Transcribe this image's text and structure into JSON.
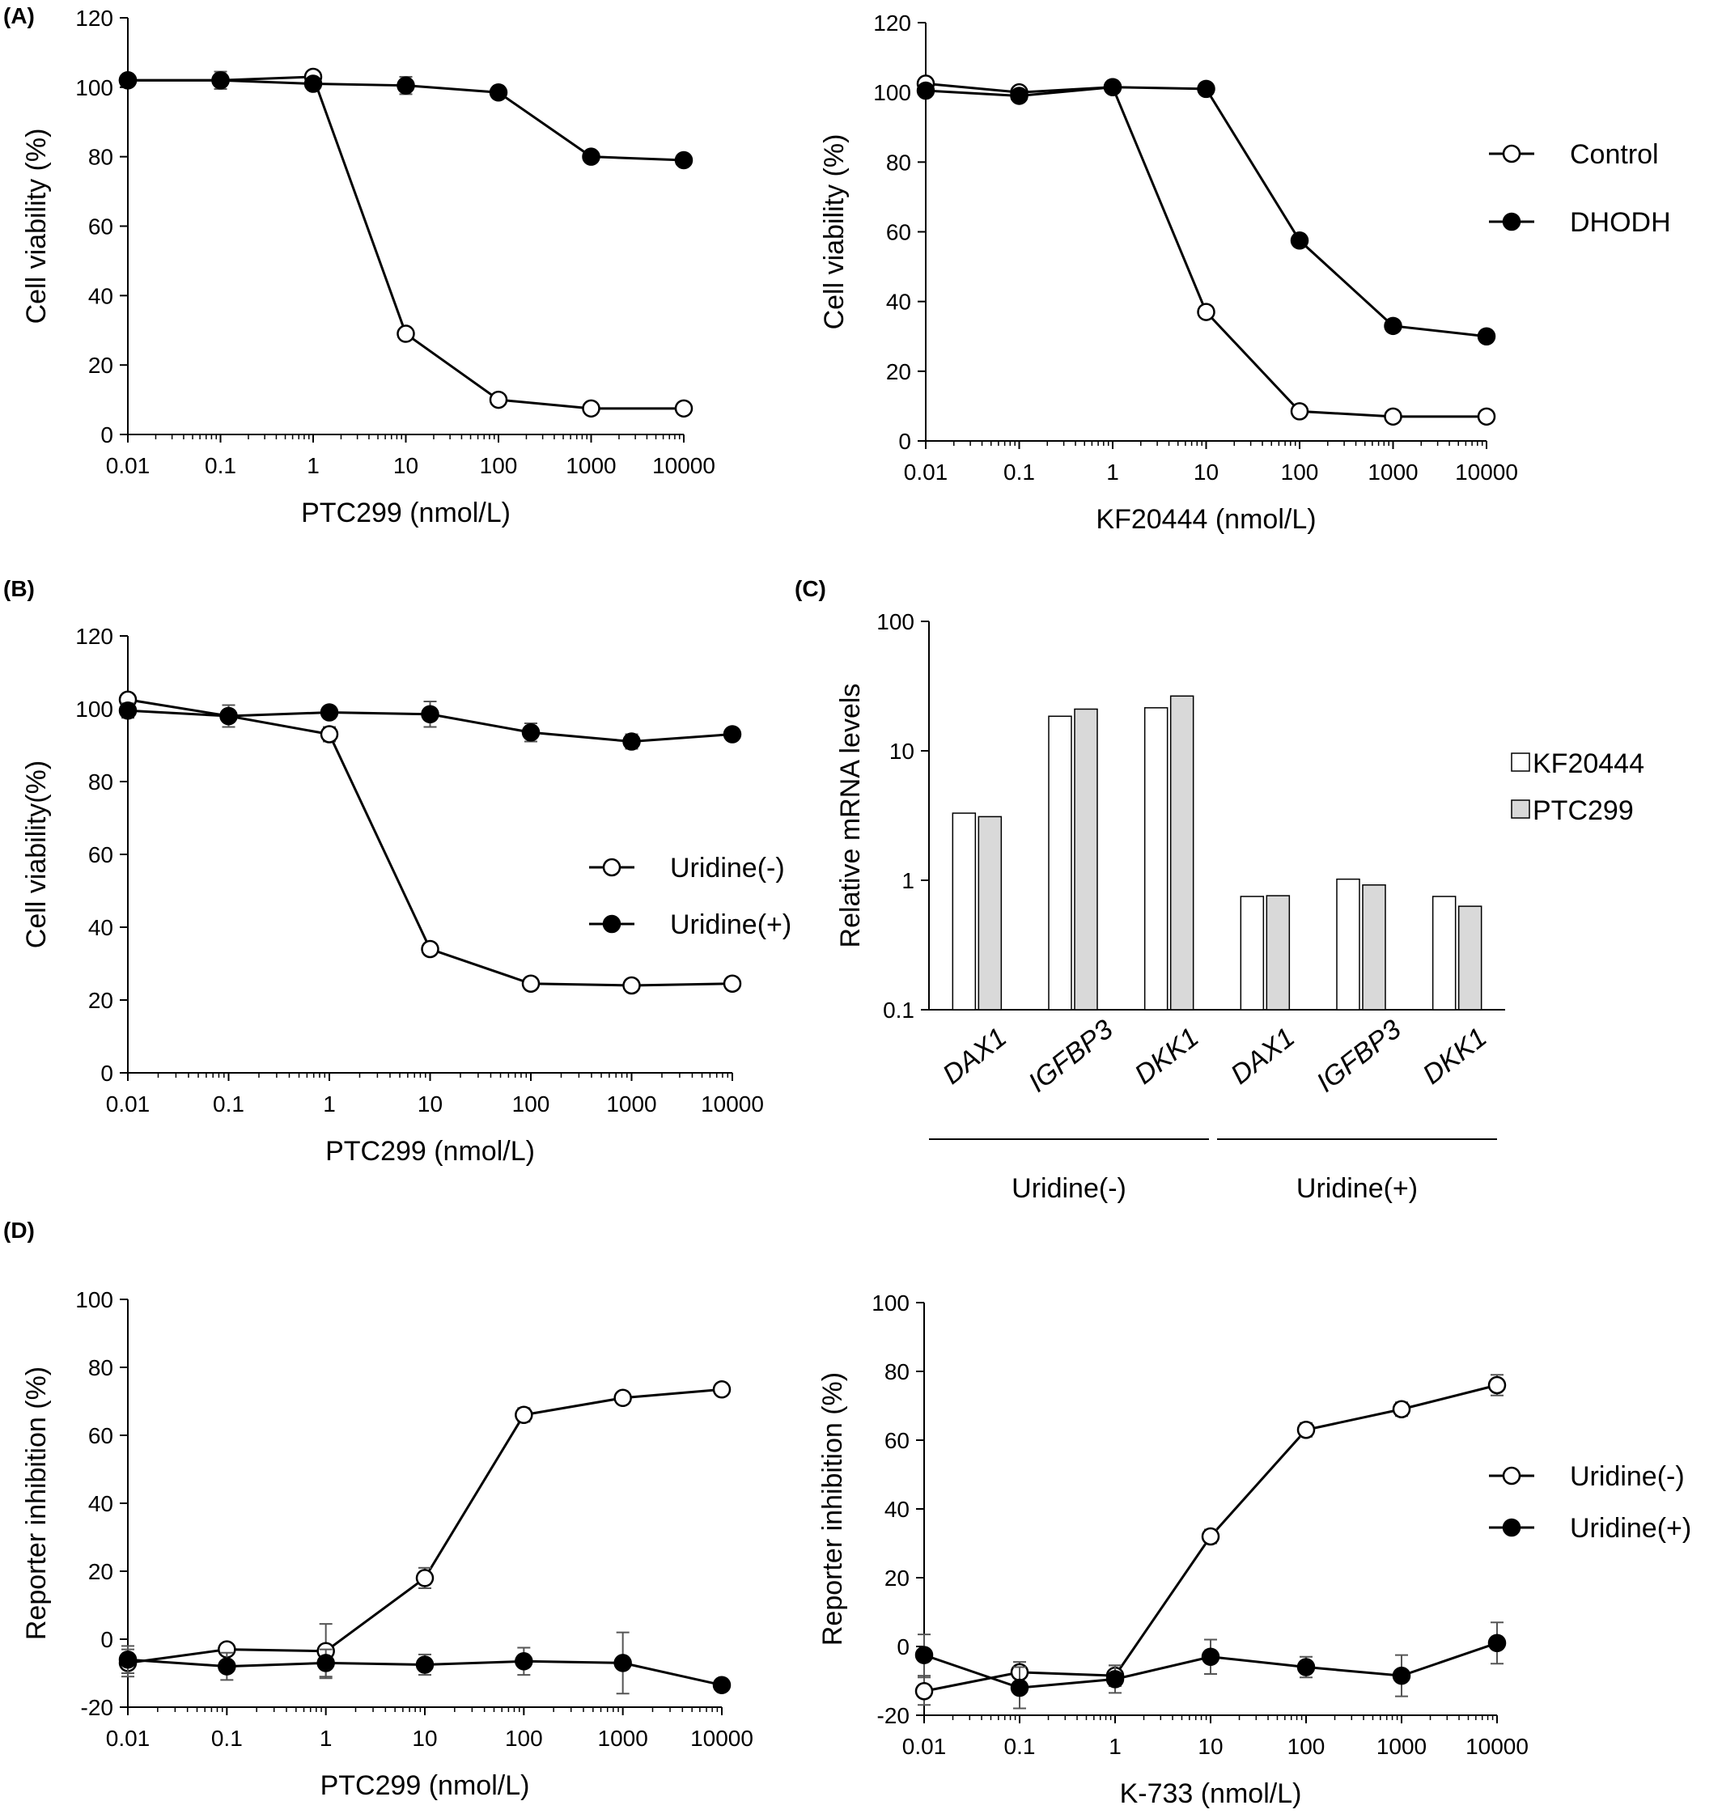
{
  "panels": {
    "A": "(A)",
    "B": "(B)",
    "C": "(C)",
    "D": "(D)"
  },
  "colors": {
    "axis": "#000000",
    "line": "#000000",
    "open_marker": "#ffffff",
    "filled_marker": "#000000",
    "bar_kf": "#ffffff",
    "bar_ptc": "#d9d9d9",
    "error_bar": "#555555"
  },
  "chart_data": [
    {
      "id": "A_left",
      "type": "line",
      "xscale": "log",
      "xlim": [
        0.01,
        10000
      ],
      "ylim": [
        0,
        120
      ],
      "x_ticks": [
        "0.01",
        "0.1",
        "1",
        "10",
        "100",
        "1000",
        "10000"
      ],
      "y_ticks": [
        "0",
        "20",
        "40",
        "60",
        "80",
        "100",
        "120"
      ],
      "xlabel": "PTC299 (nmol/L)",
      "ylabel": "Cell viability (%)",
      "x": [
        0.01,
        0.1,
        1,
        10,
        100,
        1000,
        10000
      ],
      "series": [
        {
          "marker": "open",
          "values": [
            102,
            102,
            103,
            29,
            10,
            7.5,
            7.5
          ],
          "err": [
            0,
            0,
            0,
            0,
            0,
            0,
            0
          ]
        },
        {
          "marker": "filled",
          "values": [
            102,
            102,
            101,
            100.5,
            98.5,
            80,
            79
          ],
          "err": [
            0,
            2.5,
            1,
            2.5,
            1,
            0,
            0
          ]
        }
      ]
    },
    {
      "id": "A_right",
      "type": "line",
      "xscale": "log",
      "xlim": [
        0.01,
        10000
      ],
      "ylim": [
        0,
        120
      ],
      "x_ticks": [
        "0.01",
        "0.1",
        "1",
        "10",
        "100",
        "1000",
        "10000"
      ],
      "y_ticks": [
        "0",
        "20",
        "40",
        "60",
        "80",
        "100",
        "120"
      ],
      "xlabel": "KF20444 (nmol/L)",
      "ylabel": "Cell viability (%)",
      "legend": {
        "position": "right",
        "entries": [
          {
            "name": "Control",
            "marker": "open"
          },
          {
            "name": "DHODH",
            "marker": "filled"
          }
        ]
      },
      "x": [
        0.01,
        0.1,
        1,
        10,
        100,
        1000,
        10000
      ],
      "series": [
        {
          "name": "Control",
          "marker": "open",
          "values": [
            102.5,
            100,
            101.5,
            37,
            8.5,
            7,
            7
          ],
          "err": [
            0,
            0,
            0,
            0,
            0,
            0,
            0
          ]
        },
        {
          "name": "DHODH",
          "marker": "filled",
          "values": [
            100.5,
            99,
            101.5,
            101,
            57.5,
            33,
            30
          ],
          "err": [
            0,
            0,
            0,
            0,
            0,
            0,
            0
          ]
        }
      ]
    },
    {
      "id": "B",
      "type": "line",
      "xscale": "log",
      "xlim": [
        0.01,
        10000
      ],
      "ylim": [
        0,
        120
      ],
      "x_ticks": [
        "0.01",
        "0.1",
        "1",
        "10",
        "100",
        "1000",
        "10000"
      ],
      "y_ticks": [
        "0",
        "20",
        "40",
        "60",
        "80",
        "100",
        "120"
      ],
      "xlabel": "PTC299 (nmol/L)",
      "ylabel": "Cell viability(%)",
      "legend": {
        "position": "center-right",
        "entries": [
          {
            "name": "Uridine(-)",
            "marker": "open"
          },
          {
            "name": "Uridine(+)",
            "marker": "filled"
          }
        ]
      },
      "x": [
        0.01,
        0.1,
        1,
        10,
        100,
        1000,
        10000
      ],
      "series": [
        {
          "name": "Uridine(-)",
          "marker": "open",
          "values": [
            102.5,
            98,
            93,
            34,
            24.5,
            24,
            24.5
          ],
          "err": [
            0,
            0,
            2,
            0,
            0,
            0,
            0
          ]
        },
        {
          "name": "Uridine(+)",
          "marker": "filled",
          "values": [
            99.5,
            98,
            99,
            98.5,
            93.5,
            91,
            93
          ],
          "err": [
            2,
            3,
            0,
            3.5,
            2.5,
            2,
            0
          ]
        }
      ]
    },
    {
      "id": "C",
      "type": "bar",
      "yscale": "log",
      "ylim": [
        0.1,
        100
      ],
      "y_ticks": [
        "0.1",
        "1",
        "10",
        "100"
      ],
      "ylabel": "Relative mRNA levels",
      "categories": [
        "DAX1",
        "IGFBP3",
        "DKK1",
        "DAX1",
        "IGFBP3",
        "DKK1"
      ],
      "groups": [
        {
          "label": "Uridine(-)",
          "from": 0,
          "to": 2
        },
        {
          "label": "Uridine(+)",
          "from": 3,
          "to": 5
        }
      ],
      "legend": {
        "position": "right",
        "entries": [
          {
            "name": "KF20444",
            "color": "#ffffff"
          },
          {
            "name": "PTC299",
            "color": "#d9d9d9"
          }
        ]
      },
      "series": [
        {
          "name": "KF20444",
          "values": [
            3.3,
            18.5,
            21.5,
            0.75,
            1.02,
            0.75
          ]
        },
        {
          "name": "PTC299",
          "values": [
            3.1,
            21,
            26.5,
            0.76,
            0.92,
            0.63
          ]
        }
      ]
    },
    {
      "id": "D_left",
      "type": "line",
      "xscale": "log",
      "xlim": [
        0.01,
        10000
      ],
      "ylim": [
        -20,
        100
      ],
      "x_ticks": [
        "0.01",
        "0.1",
        "1",
        "10",
        "100",
        "1000",
        "10000"
      ],
      "y_ticks": [
        "-20",
        "0",
        "20",
        "40",
        "60",
        "80",
        "100"
      ],
      "xlabel": "PTC299 (nmol/L)",
      "ylabel": "Reporter inhibition (%)",
      "x": [
        0.01,
        0.1,
        1,
        10,
        100,
        1000,
        10000
      ],
      "series": [
        {
          "marker": "open",
          "values": [
            -7,
            -3,
            -3.5,
            18,
            66,
            71,
            73.5
          ],
          "err": [
            4,
            0,
            8,
            3,
            2,
            0,
            0
          ]
        },
        {
          "marker": "filled",
          "values": [
            -6,
            -8,
            -7,
            -7.5,
            -6.5,
            -7,
            -13.5
          ],
          "err": [
            4,
            4,
            4,
            3,
            4,
            9,
            0
          ]
        }
      ]
    },
    {
      "id": "D_right",
      "type": "line",
      "xscale": "log",
      "xlim": [
        0.01,
        10000
      ],
      "ylim": [
        -20,
        100
      ],
      "x_ticks": [
        "0.01",
        "0.1",
        "1",
        "10",
        "100",
        "1000",
        "10000"
      ],
      "y_ticks": [
        "-20",
        "0",
        "20",
        "40",
        "60",
        "80",
        "100"
      ],
      "xlabel": "K-733 (nmol/L)",
      "ylabel": "Reporter inhibition (%)",
      "legend": {
        "position": "right",
        "entries": [
          {
            "name": "Uridine(-)",
            "marker": "open"
          },
          {
            "name": "Uridine(+)",
            "marker": "filled"
          }
        ]
      },
      "x": [
        0.01,
        0.1,
        1,
        10,
        100,
        1000,
        10000
      ],
      "series": [
        {
          "name": "Uridine(-)",
          "marker": "open",
          "values": [
            -13,
            -7.5,
            -8.5,
            32,
            63,
            69,
            76
          ],
          "err": [
            4,
            3,
            3,
            2,
            2,
            2,
            3
          ]
        },
        {
          "name": "Uridine(+)",
          "marker": "filled",
          "values": [
            -2.5,
            -12,
            -9.5,
            -3,
            -6,
            -8.5,
            1
          ],
          "err": [
            6,
            6,
            4,
            5,
            3,
            6,
            6
          ]
        }
      ]
    }
  ]
}
